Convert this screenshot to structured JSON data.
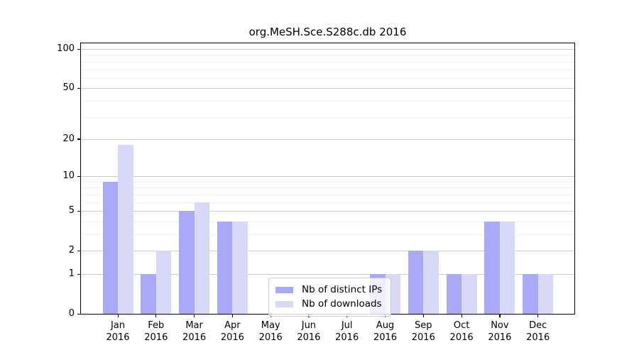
{
  "figure": {
    "title": "org.MeSH.Sce.S288c.db 2016"
  },
  "legend": {
    "items": [
      {
        "label": "Nb of distinct IPs",
        "color": "#a9a9f7"
      },
      {
        "label": "Nb of downloads",
        "color": "#d8d8f7"
      }
    ]
  },
  "chart_data": {
    "type": "bar",
    "title": "org.MeSH.Sce.S288c.db 2016",
    "categories": [
      "Jan 2016",
      "Feb 2016",
      "Mar 2016",
      "Apr 2016",
      "May 2016",
      "Jun 2016",
      "Jul 2016",
      "Aug 2016",
      "Sep 2016",
      "Oct 2016",
      "Nov 2016",
      "Dec 2016"
    ],
    "months": [
      "Jan",
      "Feb",
      "Mar",
      "Apr",
      "May",
      "Jun",
      "Jul",
      "Aug",
      "Sep",
      "Oct",
      "Nov",
      "Dec"
    ],
    "year": "2016",
    "series": [
      {
        "name": "Nb of distinct IPs",
        "color": "#a9a9f7",
        "values": [
          9,
          1,
          5,
          4,
          0,
          0,
          0,
          1,
          2,
          1,
          4,
          1
        ]
      },
      {
        "name": "Nb of downloads",
        "color": "#d8d8f7",
        "values": [
          18,
          2,
          6,
          4,
          0,
          0,
          0,
          1,
          2,
          1,
          4,
          1
        ]
      }
    ],
    "xlabel": "",
    "ylabel": "",
    "y_scale": "log10(1+x)",
    "y_ticks": [
      0,
      1,
      2,
      5,
      10,
      20,
      50,
      100
    ],
    "y_minor_gridlines": [
      3,
      4,
      6,
      7,
      8,
      9,
      30,
      40,
      60,
      70,
      80,
      90
    ],
    "ylim": [
      0,
      113
    ],
    "grid": true,
    "legend_position": "lower center",
    "colors": {
      "grid_major": "#cbcbcb",
      "grid_minor": "#f0f0f0",
      "axis": "#000000",
      "background": "#ffffff"
    }
  }
}
